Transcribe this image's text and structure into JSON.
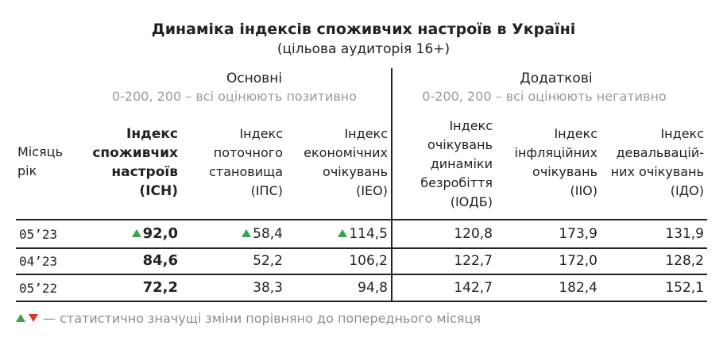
{
  "title": "Динаміка індексів споживчих настроїв в Україні",
  "subtitle": "(цільова аудиторія 16+)",
  "groups": {
    "main": {
      "title": "Основні",
      "desc": "0-200, 200 – всі оцінюють позитивно"
    },
    "extra": {
      "title": "Додаткові",
      "desc": "0-200, 200 – всі оцінюють негативно"
    }
  },
  "columns": {
    "month": [
      "Місяць",
      "рік"
    ],
    "isn": [
      "Індекс",
      "споживчих",
      "настроїв",
      "(ІСН)"
    ],
    "ips": [
      "Індекс",
      "поточного",
      "становища",
      "(ІПС)"
    ],
    "ieo": [
      "Індекс",
      "економічних",
      "очікувань",
      "(ІЕО)"
    ],
    "iodb": [
      "Індекс",
      "очікувань",
      "динаміки",
      "безробіття",
      "(ІОДБ)"
    ],
    "iio": [
      "Індекс",
      "інфляційних",
      "очікувань",
      "(ІІО)"
    ],
    "ido": [
      "Індекс",
      "девальваційних очікувань",
      "них очікувань",
      "(ІДО)"
    ]
  },
  "rows": [
    {
      "month": "05’23",
      "isn": "92,0",
      "ips": "58,4",
      "ieo": "114,5",
      "iodb": "120,8",
      "iio": "173,9",
      "ido": "131,9",
      "up": true
    },
    {
      "month": "04’23",
      "isn": "84,6",
      "ips": "52,2",
      "ieo": "106,2",
      "iodb": "122,7",
      "iio": "172,0",
      "ido": "128,2",
      "up": false
    },
    {
      "month": "05’22",
      "isn": "72,2",
      "ips": "38,3",
      "ieo": "94,8",
      "iodb": "142,7",
      "iio": "182,4",
      "ido": "152,1",
      "up": false
    }
  ],
  "legend": "— статистично значущі зміни порівняно до попереднього місяця",
  "colors": {
    "up": "#3aa64a",
    "down": "#d23a2e",
    "muted": "#9a9a9a"
  }
}
